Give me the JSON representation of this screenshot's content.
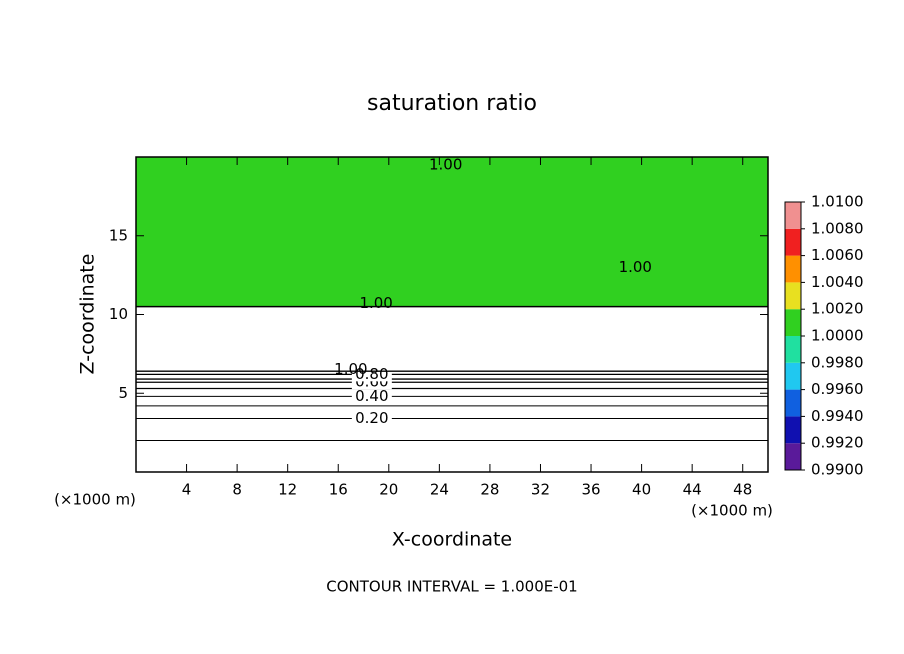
{
  "chart_data": {
    "type": "contour",
    "title": "saturation ratio",
    "xlabel": "X-coordinate",
    "ylabel": "Z-coordinate",
    "x_unit": "(×1000 m)",
    "y_unit": "(×1000 m)",
    "footer": "CONTOUR INTERVAL = 1.000E-01",
    "xlim": [
      0,
      50
    ],
    "ylim": [
      0,
      20
    ],
    "xticks": [
      4,
      8,
      12,
      16,
      20,
      24,
      28,
      32,
      36,
      40,
      44,
      48
    ],
    "yticks": [
      5,
      10,
      15
    ],
    "field": {
      "value": 1.0,
      "z_bottom": 10.5
    },
    "contours": [
      {
        "level": 0.1,
        "z": 2.0
      },
      {
        "level": 0.2,
        "z": 3.4,
        "label": "0.20"
      },
      {
        "level": 0.3,
        "z": 4.2
      },
      {
        "level": 0.4,
        "z": 4.8,
        "label": "0.40"
      },
      {
        "level": 0.5,
        "z": 5.3
      },
      {
        "level": 0.6,
        "z": 5.7,
        "label": "0.60"
      },
      {
        "level": 0.7,
        "z": 5.9
      },
      {
        "level": 0.8,
        "z": 6.2,
        "label": "0.80"
      },
      {
        "level": 0.9,
        "z": 6.4
      }
    ],
    "contour_labels": [
      {
        "text": "1.00",
        "x": 24.5,
        "z": 19.5
      },
      {
        "text": "1.00",
        "x": 19.0,
        "z": 10.7
      },
      {
        "text": "1.00",
        "x": 39.5,
        "z": 13.0
      },
      {
        "text": "1.00",
        "x": 17.0,
        "z": 6.5
      }
    ],
    "colorbar": {
      "ticks": [
        {
          "value": 0.99,
          "label": "0.9900"
        },
        {
          "value": 0.992,
          "label": "0.9920"
        },
        {
          "value": 0.994,
          "label": "0.9940"
        },
        {
          "value": 0.996,
          "label": "0.9960"
        },
        {
          "value": 0.998,
          "label": "0.9980"
        },
        {
          "value": 1.0,
          "label": "1.0000"
        },
        {
          "value": 1.002,
          "label": "1.0020"
        },
        {
          "value": 1.004,
          "label": "1.0040"
        },
        {
          "value": 1.006,
          "label": "1.0060"
        },
        {
          "value": 1.008,
          "label": "1.0080"
        },
        {
          "value": 1.01,
          "label": "1.0100"
        }
      ],
      "colors": [
        "#5a1a9a",
        "#1010b0",
        "#1060e0",
        "#20c8f0",
        "#20e0a0",
        "#30d020",
        "#e8e020",
        "#ff9000",
        "#f02020",
        "#f09090"
      ]
    }
  }
}
